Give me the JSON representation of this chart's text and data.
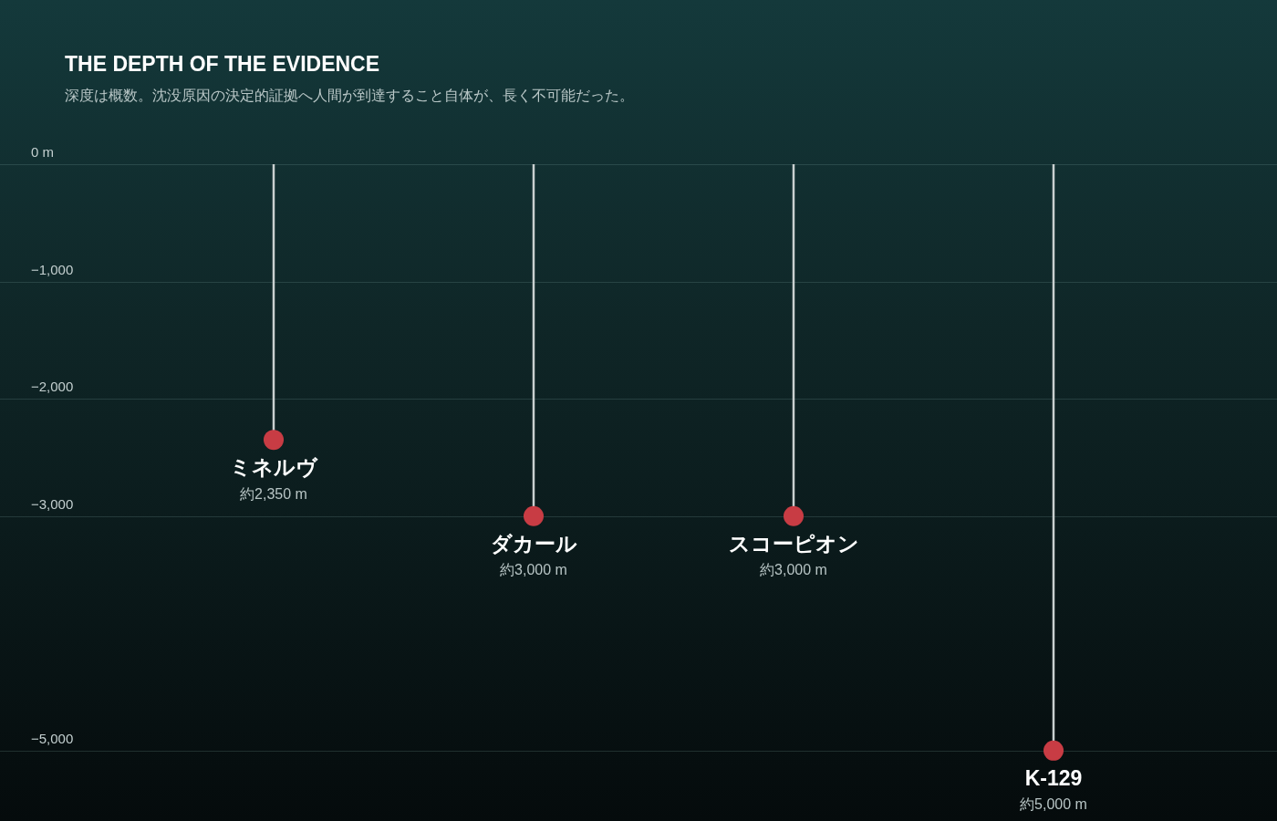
{
  "chart_data": {
    "type": "lollipop",
    "title": "THE DEPTH OF THE EVIDENCE",
    "subtitle": "深度は概数。沈没原因の決定的証拠へ人間が到達すること自体が、長く不可能だった。",
    "categories": [
      "ミネルヴ",
      "ダカール",
      "スコーピオン",
      "K-129"
    ],
    "values": [
      -2350,
      -3000,
      -3000,
      -5000
    ],
    "value_labels": [
      "約2,350 m",
      "約3,000 m",
      "約3,000 m",
      "約5,000 m"
    ],
    "color": "#c83c44",
    "marker": "circle",
    "ylim": [
      -5600,
      1400
    ],
    "yticks": [
      {
        "value": 0,
        "label": "0 m"
      },
      {
        "value": -1000,
        "label": "−1,000"
      },
      {
        "value": -2000,
        "label": "−2,000"
      },
      {
        "value": -3000,
        "label": "−3,000"
      },
      {
        "value": -5000,
        "label": "−5,000"
      }
    ],
    "grid": "y"
  }
}
